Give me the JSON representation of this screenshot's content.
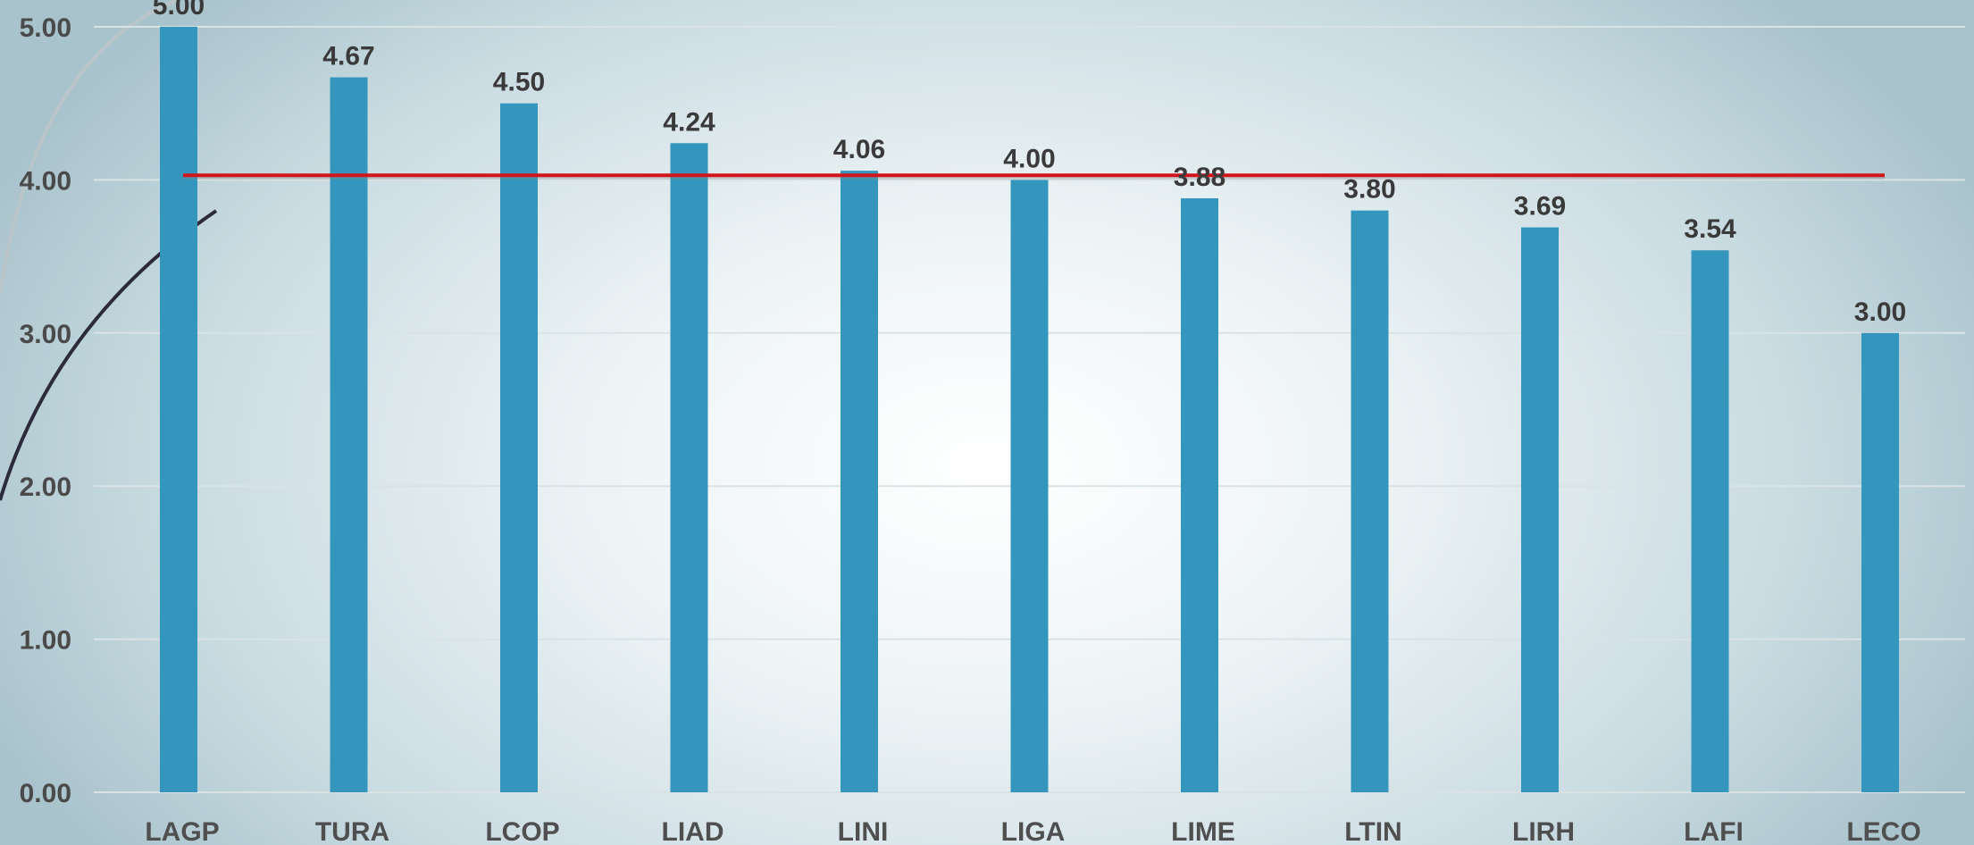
{
  "chart_data": {
    "type": "bar",
    "categories": [
      "LAGP",
      "TURA",
      "LCOP",
      "LIAD",
      "LINI",
      "LIGA",
      "LIME",
      "LTIN",
      "LIRH",
      "LAFI",
      "LECO"
    ],
    "values": [
      5.0,
      4.67,
      4.5,
      4.24,
      4.06,
      4.0,
      3.88,
      3.8,
      3.69,
      3.54,
      3.0
    ],
    "value_labels": [
      "5.00",
      "4.67",
      "4.50",
      "4.24",
      "4.06",
      "4.00",
      "3.88",
      "3.80",
      "3.69",
      "3.54",
      "3.00"
    ],
    "y_ticks": [
      "0.00",
      "1.00",
      "2.00",
      "3.00",
      "4.00",
      "5.00"
    ],
    "ylim": [
      0,
      5
    ],
    "reference_line": 4.03,
    "grid": true,
    "title": "",
    "xlabel": "",
    "ylabel": "",
    "colors": {
      "bar": "#3596bd",
      "reference_line": "#d2141b",
      "grid": "#d9e3e6"
    }
  }
}
